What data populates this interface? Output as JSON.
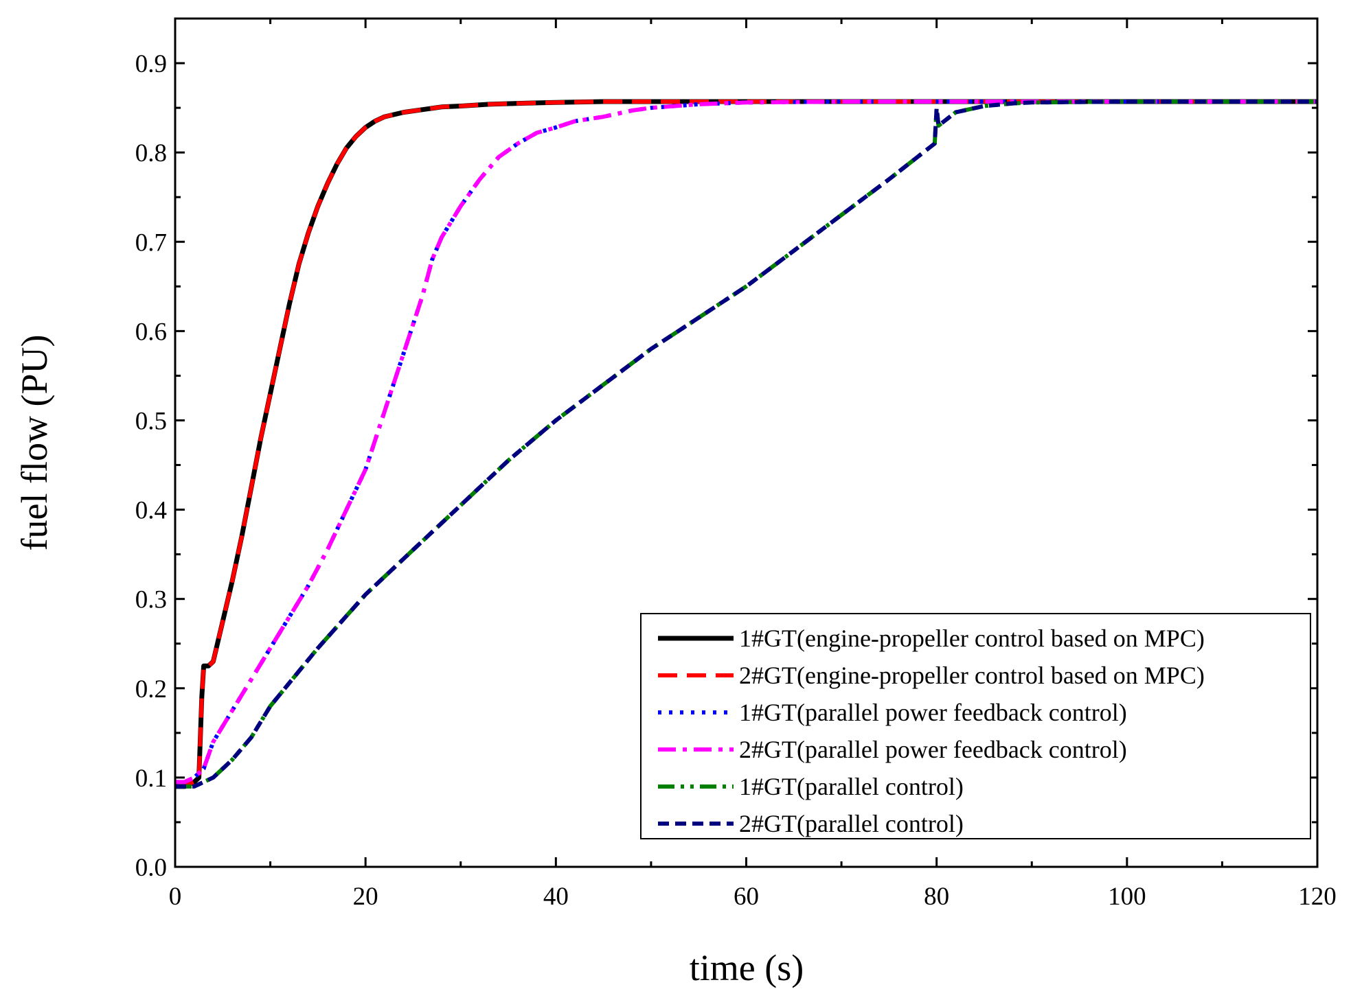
{
  "chart_data": {
    "type": "line",
    "title": "",
    "xlabel": "time (s)",
    "ylabel": "fuel flow (PU)",
    "xlim": [
      0,
      120
    ],
    "ylim": [
      0,
      0.95
    ],
    "x_ticks": [
      0,
      20,
      40,
      60,
      80,
      100,
      120
    ],
    "y_ticks": [
      0.0,
      0.1,
      0.2,
      0.3,
      0.4,
      0.5,
      0.6,
      0.7,
      0.8,
      0.9
    ],
    "x_tick_labels": [
      "0",
      "20",
      "40",
      "60",
      "80",
      "100",
      "120"
    ],
    "y_tick_labels": [
      "0.0",
      "0.1",
      "0.2",
      "0.3",
      "0.4",
      "0.5",
      "0.6",
      "0.7",
      "0.8",
      "0.9"
    ],
    "grid": false,
    "legend_position": "bottom-right",
    "series": [
      {
        "name": "1#GT(engine-propeller control based on MPC)",
        "color": "#000000",
        "style": "solid",
        "x": [
          0,
          1,
          2,
          2.5,
          2.8,
          3,
          3.5,
          4,
          5,
          6,
          7,
          8,
          9,
          10,
          11,
          12,
          13,
          14,
          15,
          16,
          17,
          18,
          19,
          20,
          21,
          22,
          24,
          26,
          28,
          30,
          33,
          36,
          40,
          45,
          50,
          60,
          70,
          80,
          90,
          100,
          110,
          120
        ],
        "y": [
          0.09,
          0.09,
          0.095,
          0.1,
          0.19,
          0.225,
          0.225,
          0.23,
          0.275,
          0.32,
          0.37,
          0.425,
          0.48,
          0.53,
          0.58,
          0.63,
          0.675,
          0.71,
          0.74,
          0.765,
          0.787,
          0.805,
          0.818,
          0.828,
          0.835,
          0.84,
          0.845,
          0.848,
          0.851,
          0.852,
          0.854,
          0.855,
          0.856,
          0.857,
          0.857,
          0.857,
          0.857,
          0.857,
          0.857,
          0.857,
          0.857,
          0.857
        ]
      },
      {
        "name": "2#GT(engine-propeller control based on MPC)",
        "color": "#ff0000",
        "style": "dash",
        "x": [
          0,
          1,
          2,
          2.5,
          2.8,
          3,
          3.5,
          4,
          5,
          6,
          7,
          8,
          9,
          10,
          11,
          12,
          13,
          14,
          15,
          16,
          17,
          18,
          19,
          20,
          21,
          22,
          24,
          26,
          28,
          30,
          33,
          36,
          40,
          45,
          50,
          60,
          70,
          80,
          90,
          100,
          110,
          120
        ],
        "y": [
          0.09,
          0.09,
          0.095,
          0.1,
          0.19,
          0.225,
          0.225,
          0.23,
          0.275,
          0.32,
          0.37,
          0.425,
          0.48,
          0.53,
          0.58,
          0.63,
          0.675,
          0.71,
          0.74,
          0.765,
          0.787,
          0.805,
          0.818,
          0.828,
          0.835,
          0.84,
          0.845,
          0.848,
          0.851,
          0.852,
          0.854,
          0.855,
          0.856,
          0.857,
          0.857,
          0.857,
          0.857,
          0.857,
          0.857,
          0.857,
          0.857,
          0.857
        ]
      },
      {
        "name": "1#GT(parallel power feedback control)",
        "color": "#0000ff",
        "style": "dot",
        "x": [
          0,
          1,
          2,
          3,
          4,
          6,
          8,
          10,
          12,
          14,
          16,
          18,
          20,
          22,
          24,
          26,
          27,
          28,
          30,
          32,
          34,
          36,
          38,
          40,
          42,
          45,
          48,
          50,
          55,
          60,
          70,
          80,
          90,
          100,
          110,
          120
        ],
        "y": [
          0.095,
          0.095,
          0.1,
          0.11,
          0.14,
          0.175,
          0.21,
          0.245,
          0.28,
          0.315,
          0.355,
          0.4,
          0.445,
          0.51,
          0.575,
          0.64,
          0.68,
          0.705,
          0.74,
          0.77,
          0.795,
          0.81,
          0.822,
          0.828,
          0.835,
          0.84,
          0.847,
          0.85,
          0.854,
          0.856,
          0.857,
          0.857,
          0.857,
          0.857,
          0.857,
          0.857
        ]
      },
      {
        "name": "2#GT(parallel power feedback control)",
        "color": "#ff00ff",
        "style": "dashdot",
        "x": [
          0,
          1,
          2,
          3,
          4,
          6,
          8,
          10,
          12,
          14,
          16,
          18,
          20,
          22,
          24,
          26,
          27,
          28,
          30,
          32,
          34,
          36,
          38,
          40,
          42,
          45,
          48,
          50,
          55,
          60,
          70,
          80,
          90,
          100,
          110,
          120
        ],
        "y": [
          0.095,
          0.095,
          0.1,
          0.11,
          0.14,
          0.175,
          0.21,
          0.245,
          0.28,
          0.315,
          0.355,
          0.4,
          0.445,
          0.51,
          0.575,
          0.64,
          0.68,
          0.705,
          0.74,
          0.77,
          0.795,
          0.81,
          0.822,
          0.828,
          0.835,
          0.84,
          0.847,
          0.85,
          0.854,
          0.856,
          0.857,
          0.857,
          0.857,
          0.857,
          0.857,
          0.857
        ]
      },
      {
        "name": "1#GT(parallel control)",
        "color": "#007f00",
        "style": "dashdotdot",
        "x": [
          0,
          1,
          2,
          3,
          4,
          5,
          6,
          8,
          10,
          15,
          20,
          25,
          30,
          35,
          40,
          45,
          50,
          55,
          60,
          65,
          70,
          75,
          79.8,
          80,
          80.2,
          82,
          85,
          88,
          90,
          100,
          110,
          120
        ],
        "y": [
          0.09,
          0.09,
          0.09,
          0.095,
          0.1,
          0.11,
          0.12,
          0.145,
          0.18,
          0.245,
          0.305,
          0.355,
          0.405,
          0.455,
          0.5,
          0.54,
          0.58,
          0.615,
          0.65,
          0.69,
          0.73,
          0.77,
          0.81,
          0.85,
          0.83,
          0.845,
          0.852,
          0.855,
          0.856,
          0.857,
          0.857,
          0.857
        ]
      },
      {
        "name": "2#GT(parallel control)",
        "color": "#00007f",
        "style": "shortdash",
        "x": [
          0,
          1,
          2,
          3,
          4,
          5,
          6,
          8,
          10,
          15,
          20,
          25,
          30,
          35,
          40,
          45,
          50,
          55,
          60,
          65,
          70,
          75,
          79.8,
          80,
          80.2,
          82,
          85,
          88,
          90,
          100,
          110,
          120
        ],
        "y": [
          0.09,
          0.09,
          0.09,
          0.095,
          0.1,
          0.11,
          0.12,
          0.145,
          0.18,
          0.245,
          0.305,
          0.355,
          0.405,
          0.455,
          0.5,
          0.54,
          0.58,
          0.615,
          0.65,
          0.69,
          0.73,
          0.77,
          0.81,
          0.85,
          0.83,
          0.845,
          0.852,
          0.855,
          0.856,
          0.857,
          0.857,
          0.857
        ]
      }
    ]
  }
}
